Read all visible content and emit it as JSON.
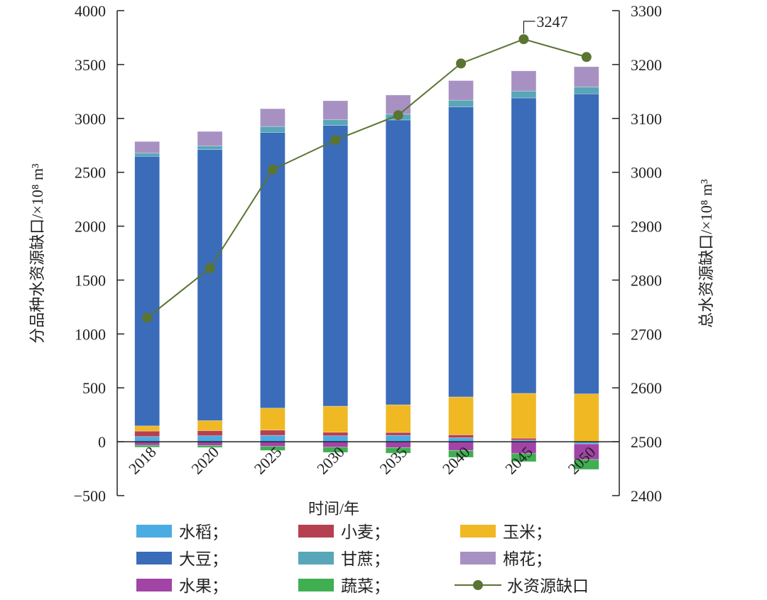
{
  "chart_data": {
    "type": "bar",
    "subtype": "stacked bar with line on secondary axis",
    "categories": [
      "2018",
      "2020",
      "2025",
      "2030",
      "2035",
      "2040",
      "2045",
      "2050"
    ],
    "xlabel": "时间/年",
    "ylabel_left": "分品种水资源缺口/×10⁸ m³",
    "ylabel_right": "总水资源缺口/×10⁸ m³",
    "ylim_left": [
      -500,
      4000
    ],
    "yticks_left": [
      -500,
      0,
      500,
      1000,
      1500,
      2000,
      2500,
      3000,
      3500,
      4000
    ],
    "ytick_labels_left": [
      "−500",
      "0",
      "500",
      "1000",
      "1500",
      "2000",
      "2500",
      "3000",
      "3500",
      "4000"
    ],
    "ylim_right": [
      2400,
      3300
    ],
    "yticks_right": [
      "2400",
      "2500",
      "2600",
      "2700",
      "2800",
      "2900",
      "3000",
      "3100",
      "3200",
      "3300"
    ],
    "grid": false,
    "legend_position": "bottom",
    "series": [
      {
        "name": "水稻；",
        "color": "#4BACE3",
        "values": [
          48,
          55,
          59,
          55,
          59,
          37,
          15,
          -20
        ]
      },
      {
        "name": "小麦；",
        "color": "#B5404F",
        "values": [
          51,
          48,
          49,
          33,
          27,
          27,
          18,
          0
        ]
      },
      {
        "name": "玉米；",
        "color": "#F0B823",
        "values": [
          48,
          93,
          204,
          242,
          257,
          352,
          416,
          444
        ]
      },
      {
        "name": "大豆；",
        "color": "#3A6CBA",
        "values": [
          2501,
          2515,
          2558,
          2605,
          2643,
          2691,
          2741,
          2784
        ]
      },
      {
        "name": "甘蔗；",
        "color": "#58A6B8",
        "values": [
          29,
          34,
          55,
          53,
          53,
          62,
          64,
          63
        ]
      },
      {
        "name": "棉花；",
        "color": "#A791C2",
        "values": [
          109,
          134,
          165,
          176,
          178,
          182,
          187,
          189
        ]
      },
      {
        "name": "水果；",
        "color": "#A144A6",
        "values": [
          -33,
          -35,
          -44,
          -51,
          -55,
          -81,
          -110,
          -145
        ]
      },
      {
        "name": "蔬菜；",
        "color": "#3FAF52",
        "values": [
          -18,
          -18,
          -37,
          -48,
          -51,
          -64,
          -75,
          -92
        ]
      }
    ],
    "line": {
      "name": "水资源缺口",
      "color": "#5A7431",
      "axis": "right",
      "values": [
        2730,
        2822,
        3005,
        3060,
        3106,
        3202,
        3247,
        3214
      ]
    },
    "annotation": {
      "label": "3247",
      "category": "2045"
    }
  }
}
